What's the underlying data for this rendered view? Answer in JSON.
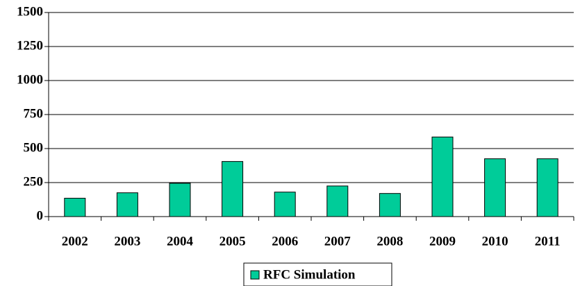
{
  "chart_data": {
    "type": "bar",
    "categories": [
      "2002",
      "2003",
      "2004",
      "2005",
      "2006",
      "2007",
      "2008",
      "2009",
      "2010",
      "2011"
    ],
    "series": [
      {
        "name": "RFC Simulation",
        "color": "#00cc99",
        "values": [
          135,
          175,
          245,
          405,
          180,
          225,
          170,
          585,
          425,
          425
        ]
      }
    ],
    "ylim": [
      0,
      1500
    ],
    "yticks": [
      0,
      250,
      500,
      750,
      1000,
      1250,
      1500
    ],
    "grid": true,
    "legend": "bottom"
  }
}
